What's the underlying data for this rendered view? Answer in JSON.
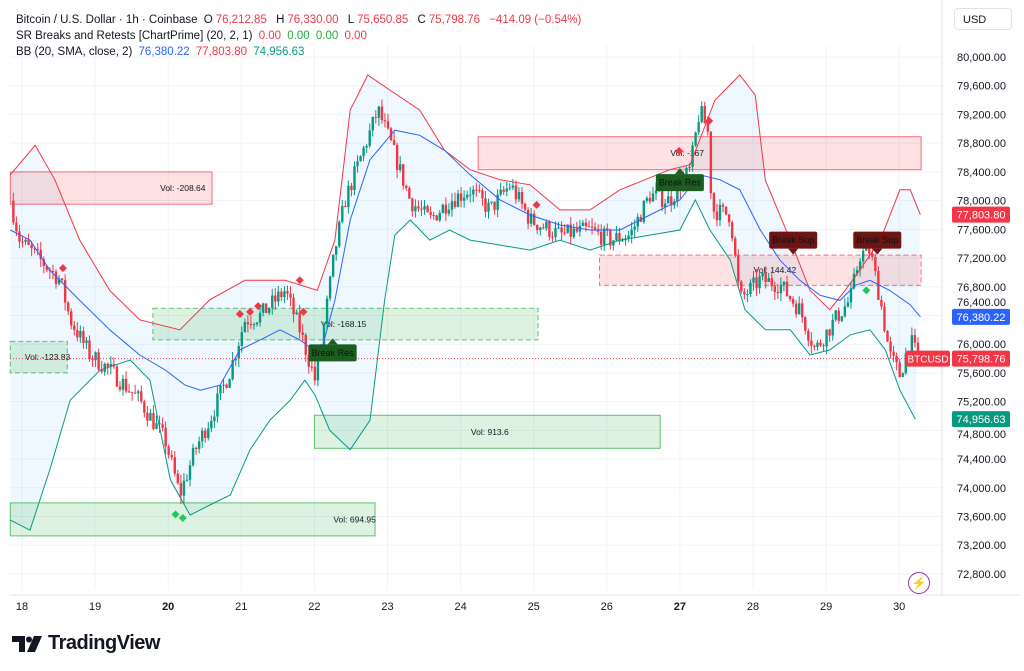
{
  "header": {
    "symbol": "Bitcoin / U.S. Dollar · 1h · Coinbase",
    "o_label": "O",
    "o": "76,212.85",
    "h_label": "H",
    "h": "76,330.00",
    "l_label": "L",
    "l": "75,650.85",
    "c_label": "C",
    "c": "75,798.76",
    "change": "−414.09 (−0.54%)",
    "indicator1": "SR Breaks and Retests [ChartPrime] (20, 2, 1)",
    "indicator1_values": [
      "0.00",
      "0.00",
      "0.00",
      "0.00"
    ],
    "indicator2": "BB (20, SMA, close, 2)",
    "indicator2_values": [
      "76,380.22",
      "77,803.80",
      "74,956.63"
    ]
  },
  "currency": "USD",
  "brand": "TradingView",
  "colors": {
    "up": "#089981",
    "down": "#f23645",
    "bb_mid": "#2962ff",
    "bb_upper": "#f23645",
    "bb_lower": "#089981",
    "res_zone": "#f23645",
    "sup_zone": "#22ab3a",
    "break_res": "#1b5e20",
    "break_sup": "#6d1414"
  },
  "chart_data": {
    "type": "candlestick",
    "y_ticks": [
      "80,000.00",
      "79,600.00",
      "79,200.00",
      "78,800.00",
      "78,400.00",
      "78,000.00",
      "77,600.00",
      "77,200.00",
      "76,800.00",
      "76,400.00",
      "76,000.00",
      "75,600.00",
      "75,200.00",
      "74,800.00",
      "74,400.00",
      "74,000.00",
      "73,600.00",
      "73,200.00",
      "72,800.00"
    ],
    "x_ticks": [
      "18",
      "19",
      "20",
      "21",
      "22",
      "23",
      "24",
      "25",
      "26",
      "27",
      "28",
      "29",
      "30"
    ],
    "ylim": [
      72400,
      80400
    ],
    "price_path": [
      [
        17.84,
        78000
      ],
      [
        17.97,
        77450
      ],
      [
        18.25,
        77170
      ],
      [
        18.52,
        76900
      ],
      [
        18.66,
        76340
      ],
      [
        18.93,
        75850
      ],
      [
        19.2,
        75640
      ],
      [
        19.61,
        75220
      ],
      [
        19.96,
        74660
      ],
      [
        20.16,
        73900
      ],
      [
        20.37,
        74530
      ],
      [
        20.57,
        74950
      ],
      [
        20.85,
        75640
      ],
      [
        21.05,
        76340
      ],
      [
        21.26,
        76400
      ],
      [
        21.6,
        76750
      ],
      [
        21.8,
        76200
      ],
      [
        22.01,
        75500
      ],
      [
        22.08,
        75900
      ],
      [
        22.28,
        77300
      ],
      [
        22.42,
        78000
      ],
      [
        22.62,
        78560
      ],
      [
        22.87,
        79260
      ],
      [
        23.03,
        78840
      ],
      [
        23.31,
        78000
      ],
      [
        23.58,
        77730
      ],
      [
        23.85,
        78000
      ],
      [
        24.13,
        78150
      ],
      [
        24.4,
        77870
      ],
      [
        24.68,
        78220
      ],
      [
        24.95,
        77730
      ],
      [
        25.36,
        77520
      ],
      [
        25.77,
        77590
      ],
      [
        26.04,
        77450
      ],
      [
        26.32,
        77520
      ],
      [
        26.59,
        78080
      ],
      [
        26.86,
        78000
      ],
      [
        27.14,
        78430
      ],
      [
        27.27,
        79260
      ],
      [
        27.38,
        78980
      ],
      [
        27.44,
        77870
      ],
      [
        27.69,
        77800
      ],
      [
        27.82,
        76620
      ],
      [
        28.1,
        76900
      ],
      [
        28.37,
        76830
      ],
      [
        28.64,
        76480
      ],
      [
        28.85,
        75920
      ],
      [
        29.12,
        76340
      ],
      [
        29.33,
        76620
      ],
      [
        29.46,
        77240
      ],
      [
        29.6,
        77310
      ],
      [
        29.74,
        76620
      ],
      [
        29.87,
        75850
      ],
      [
        30.01,
        75570
      ],
      [
        30.15,
        76060
      ],
      [
        30.26,
        75798.76
      ]
    ],
    "bb_upper": [
      [
        17.84,
        78360
      ],
      [
        18.18,
        78770
      ],
      [
        18.45,
        78290
      ],
      [
        18.79,
        77450
      ],
      [
        19.2,
        76750
      ],
      [
        19.61,
        76340
      ],
      [
        20.16,
        76200
      ],
      [
        20.57,
        76620
      ],
      [
        21.05,
        76890
      ],
      [
        21.6,
        76890
      ],
      [
        22.04,
        76750
      ],
      [
        22.28,
        77450
      ],
      [
        22.49,
        79260
      ],
      [
        22.73,
        79750
      ],
      [
        23.03,
        79540
      ],
      [
        23.44,
        79260
      ],
      [
        23.78,
        78700
      ],
      [
        24.13,
        78430
      ],
      [
        24.54,
        78290
      ],
      [
        24.95,
        78220
      ],
      [
        25.36,
        77870
      ],
      [
        25.77,
        77870
      ],
      [
        26.18,
        78150
      ],
      [
        26.86,
        78430
      ],
      [
        27.14,
        78500
      ],
      [
        27.48,
        79400
      ],
      [
        27.82,
        79750
      ],
      [
        28.03,
        79470
      ],
      [
        28.17,
        78280
      ],
      [
        28.51,
        77450
      ],
      [
        28.78,
        76750
      ],
      [
        29.05,
        76480
      ],
      [
        29.26,
        76750
      ],
      [
        29.46,
        77030
      ],
      [
        29.74,
        77450
      ],
      [
        30.01,
        78150
      ],
      [
        30.15,
        78150
      ],
      [
        30.29,
        77803.8
      ]
    ],
    "bb_mid": [
      [
        17.84,
        77590
      ],
      [
        18.11,
        77450
      ],
      [
        18.38,
        77030
      ],
      [
        18.79,
        76610
      ],
      [
        19.2,
        76200
      ],
      [
        19.61,
        75850
      ],
      [
        19.96,
        75640
      ],
      [
        20.23,
        75430
      ],
      [
        20.44,
        75360
      ],
      [
        20.71,
        75430
      ],
      [
        20.98,
        75920
      ],
      [
        21.26,
        76060
      ],
      [
        21.53,
        76200
      ],
      [
        21.8,
        76060
      ],
      [
        22.08,
        75850
      ],
      [
        22.28,
        76610
      ],
      [
        22.49,
        77730
      ],
      [
        22.76,
        78570
      ],
      [
        23.1,
        78980
      ],
      [
        23.44,
        78910
      ],
      [
        23.78,
        78700
      ],
      [
        24.13,
        78360
      ],
      [
        24.54,
        78010
      ],
      [
        24.95,
        77800
      ],
      [
        25.36,
        77660
      ],
      [
        25.77,
        77590
      ],
      [
        26.18,
        77590
      ],
      [
        26.59,
        77800
      ],
      [
        27.0,
        78010
      ],
      [
        27.27,
        78360
      ],
      [
        27.55,
        78290
      ],
      [
        27.82,
        78150
      ],
      [
        28.1,
        77590
      ],
      [
        28.37,
        77170
      ],
      [
        28.64,
        76890
      ],
      [
        28.92,
        76680
      ],
      [
        29.19,
        76610
      ],
      [
        29.4,
        76820
      ],
      [
        29.6,
        76890
      ],
      [
        29.87,
        76750
      ],
      [
        30.15,
        76550
      ],
      [
        30.29,
        76380.22
      ]
    ],
    "bb_lower": [
      [
        17.84,
        73550
      ],
      [
        18.11,
        73410
      ],
      [
        18.38,
        74250
      ],
      [
        18.66,
        75220
      ],
      [
        19.07,
        75640
      ],
      [
        19.48,
        75780
      ],
      [
        19.75,
        75500
      ],
      [
        19.89,
        74800
      ],
      [
        20.03,
        74110
      ],
      [
        20.3,
        73620
      ],
      [
        20.57,
        73760
      ],
      [
        20.85,
        73900
      ],
      [
        21.12,
        74530
      ],
      [
        21.39,
        74940
      ],
      [
        21.67,
        75220
      ],
      [
        21.87,
        75500
      ],
      [
        22.01,
        75290
      ],
      [
        22.21,
        74800
      ],
      [
        22.49,
        74530
      ],
      [
        22.76,
        74940
      ],
      [
        22.96,
        76610
      ],
      [
        23.1,
        77520
      ],
      [
        23.31,
        77730
      ],
      [
        23.58,
        77450
      ],
      [
        23.85,
        77590
      ],
      [
        24.13,
        77450
      ],
      [
        24.54,
        77380
      ],
      [
        24.95,
        77310
      ],
      [
        25.36,
        77450
      ],
      [
        25.77,
        77310
      ],
      [
        26.18,
        77450
      ],
      [
        26.59,
        77520
      ],
      [
        27.0,
        77590
      ],
      [
        27.21,
        78010
      ],
      [
        27.41,
        77590
      ],
      [
        27.69,
        77170
      ],
      [
        27.89,
        76480
      ],
      [
        28.17,
        76200
      ],
      [
        28.51,
        76200
      ],
      [
        28.78,
        75850
      ],
      [
        29.05,
        75920
      ],
      [
        29.33,
        76130
      ],
      [
        29.6,
        76200
      ],
      [
        29.81,
        75920
      ],
      [
        30.01,
        75360
      ],
      [
        30.22,
        74956.63
      ]
    ],
    "zones": [
      {
        "kind": "res",
        "style": "solid",
        "d0": 17.84,
        "d1": 20.6,
        "p0": 77950,
        "p1": 78400,
        "label": "Vol: -208.64",
        "label_day": 20.2
      },
      {
        "kind": "res",
        "style": "solid",
        "d0": 24.24,
        "d1": 30.3,
        "p0": 78430,
        "p1": 78890,
        "label": "Vol: -167",
        "label_day": 27.1
      },
      {
        "kind": "res",
        "style": "dashed",
        "d0": 25.9,
        "d1": 30.3,
        "p0": 76820,
        "p1": 77240,
        "label": "Vol: 144.42",
        "label_day": 28.3
      },
      {
        "kind": "sup",
        "style": "dashed",
        "d0": 19.79,
        "d1": 25.06,
        "p0": 76060,
        "p1": 76500,
        "label": "Vol: -168.15",
        "label_day": 22.4
      },
      {
        "kind": "sup",
        "style": "dashed",
        "d0": 17.84,
        "d1": 18.62,
        "p0": 75600,
        "p1": 76040,
        "label": "Vol: -123.83",
        "label_day": 18.35
      },
      {
        "kind": "sup",
        "style": "solid",
        "d0": 22.0,
        "d1": 26.73,
        "p0": 74550,
        "p1": 75010,
        "label": "Vol: 913.6",
        "label_day": 24.4
      },
      {
        "kind": "sup",
        "style": "solid",
        "d0": 17.84,
        "d1": 22.83,
        "p0": 73330,
        "p1": 73790,
        "label": "Vol: 694.95",
        "label_day": 22.55
      }
    ],
    "breaks": [
      {
        "kind": "res",
        "label": "Break Res",
        "day": 22.25,
        "price": 75880
      },
      {
        "kind": "res",
        "label": "Break Res",
        "day": 27.0,
        "price": 78250
      },
      {
        "kind": "sup",
        "label": "Break Sup",
        "day": 28.55,
        "price": 77450
      },
      {
        "kind": "sup",
        "label": "Break Sup",
        "day": 29.7,
        "price": 77450
      }
    ],
    "retests": [
      {
        "kind": "res",
        "day": 18.56,
        "price": 77060
      },
      {
        "kind": "res",
        "day": 20.98,
        "price": 76420
      },
      {
        "kind": "res",
        "day": 21.12,
        "price": 76450
      },
      {
        "kind": "res",
        "day": 21.23,
        "price": 76530
      },
      {
        "kind": "res",
        "day": 21.8,
        "price": 76890
      },
      {
        "kind": "res",
        "day": 21.85,
        "price": 76450
      },
      {
        "kind": "res",
        "day": 25.04,
        "price": 77940
      },
      {
        "kind": "res",
        "day": 26.99,
        "price": 78690
      },
      {
        "kind": "res",
        "day": 27.4,
        "price": 79110
      },
      {
        "kind": "sup",
        "day": 20.1,
        "price": 73630
      },
      {
        "kind": "sup",
        "day": 20.2,
        "price": 73580
      },
      {
        "kind": "sup",
        "day": 29.55,
        "price": 76750
      }
    ],
    "price_labels": [
      {
        "text": "77,803.80",
        "price": 77803.8,
        "color": "#f23645"
      },
      {
        "text": "76,380.22",
        "price": 76380.22,
        "color": "#2962ff"
      },
      {
        "text": "75,798.76",
        "price": 75798.76,
        "color": "#f23645",
        "ticker": "BTCUSD"
      },
      {
        "text": "74,956.63",
        "price": 74956.63,
        "color": "#089981"
      }
    ],
    "last_price": 75798.76
  }
}
